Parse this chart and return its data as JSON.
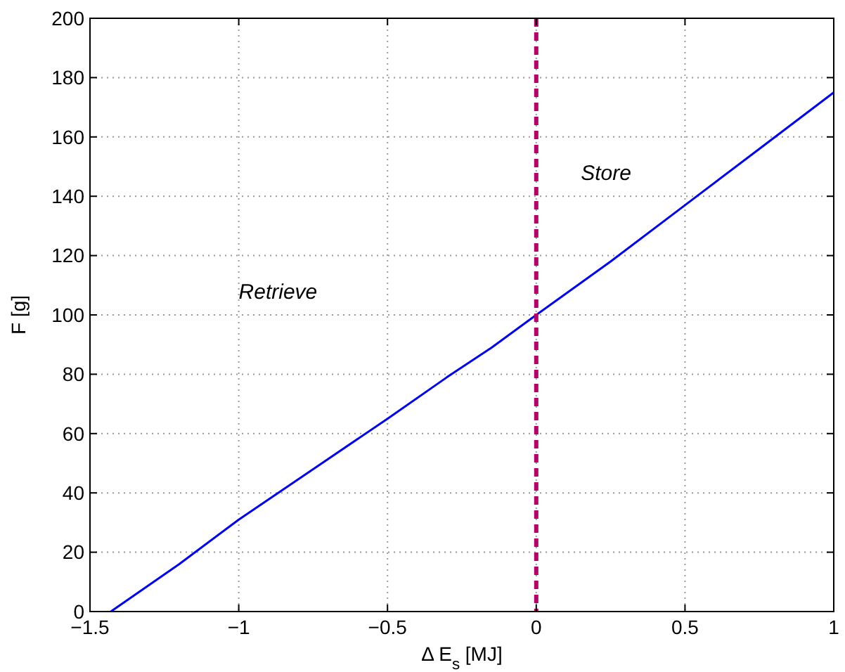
{
  "chart_data": {
    "type": "line",
    "xlabel": "Δ E$_{s}$ [MJ]",
    "ylabel": "F  [g]",
    "x": [
      -1.43,
      -1.2,
      -1,
      -0.75,
      -0.5,
      -0.3,
      -0.15,
      0,
      0.25,
      0.5,
      0.75,
      1
    ],
    "series": [
      {
        "color": "#0000ff",
        "values": [
          0,
          16,
          31,
          48,
          65,
          79,
          89,
          100,
          118,
          137,
          156,
          175
        ]
      }
    ],
    "xlim": [
      -1.5,
      1
    ],
    "xticks": [
      {
        "value": -1.5,
        "label": "−1.5"
      },
      {
        "value": -1,
        "label": "−1"
      },
      {
        "value": -0.5,
        "label": "−0.5"
      },
      0,
      0.5,
      1
    ],
    "ylim": [
      0,
      200
    ],
    "yticks": [
      0,
      20,
      40,
      60,
      80,
      100,
      120,
      140,
      160,
      180,
      200
    ],
    "grid": true,
    "line_style": "solid",
    "marker": "none",
    "ref_lines": [
      {
        "axis": "x",
        "value": 0,
        "color": "#b5006a",
        "line_style": "dashed"
      }
    ],
    "annotations": [
      "Retrieve",
      "Store"
    ]
  }
}
